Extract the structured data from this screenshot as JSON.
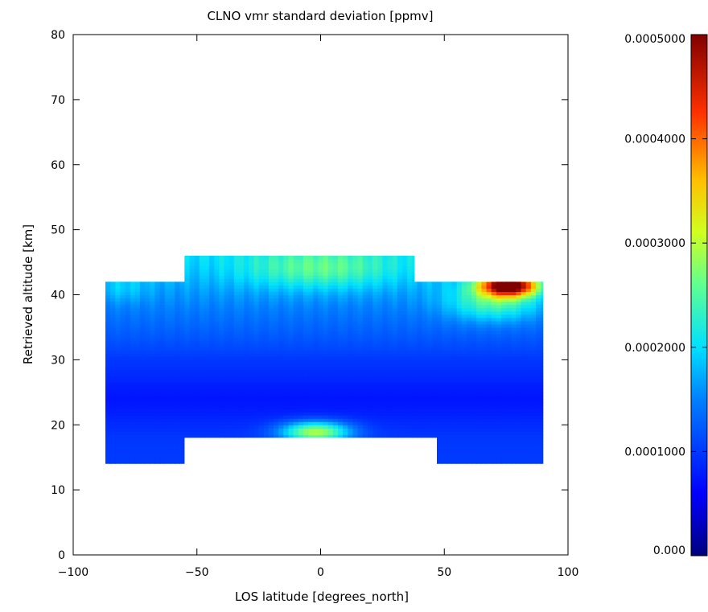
{
  "chart_data": {
    "type": "heatmap",
    "title": "CLNO vmr standard deviation [ppmv]",
    "xlabel": "LOS latitude [degrees_north]",
    "ylabel": "Retrieved altitude [km]",
    "xlim": [
      -100,
      100
    ],
    "ylim": [
      0,
      80
    ],
    "xticks": [
      -100,
      -50,
      0,
      50,
      100
    ],
    "yticks": [
      0,
      10,
      20,
      30,
      40,
      50,
      60,
      70,
      80
    ],
    "grid": false,
    "colorbar": {
      "range": [
        0.0,
        0.0005
      ],
      "tick_labels": [
        "0.000",
        "0.0001000",
        "0.0002000",
        "0.0003000",
        "0.0004000",
        "0.0005000"
      ],
      "tick_values": [
        0.0,
        0.0001,
        0.0002,
        0.0003,
        0.0004,
        0.0005
      ],
      "colormap": "rainbow (dark blue to dark red)",
      "position": "right"
    },
    "data_regions": [
      {
        "lat_range": [
          -87,
          -55
        ],
        "alt_range": [
          14,
          42
        ]
      },
      {
        "lat_range": [
          -55,
          38
        ],
        "alt_range": [
          18,
          46
        ]
      },
      {
        "lat_range": [
          38,
          47
        ],
        "alt_range": [
          18,
          42
        ]
      },
      {
        "lat_range": [
          47,
          90
        ],
        "alt_range": [
          14,
          42
        ]
      }
    ],
    "features": [
      {
        "description": "maximum",
        "lat": 75,
        "alt": 41,
        "value": 0.00048
      },
      {
        "lat": 0,
        "alt": 19,
        "value": 0.00028
      },
      {
        "lat": 5,
        "alt": 45,
        "value": 0.00025
      }
    ]
  }
}
